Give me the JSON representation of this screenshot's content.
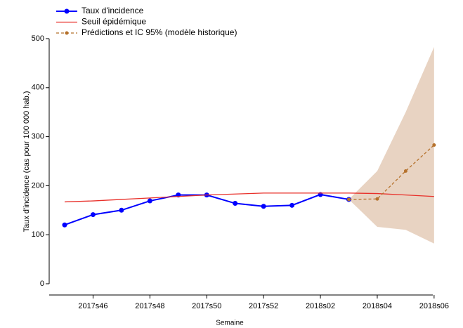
{
  "chart_data": {
    "type": "line",
    "categories": [
      null,
      "2017s46",
      null,
      "2017s48",
      null,
      "2017s50",
      null,
      "2017s52",
      null,
      "2018s02",
      null,
      "2018s04",
      null,
      "2018s06"
    ],
    "series": [
      {
        "name": "Taux d'incidence",
        "color": "#0000ff",
        "style": "solid",
        "markers": true,
        "values": [
          120,
          141,
          150,
          169,
          181,
          181,
          164,
          158,
          160,
          182,
          172,
          null,
          null,
          null
        ]
      },
      {
        "name": "Seuil épidémique",
        "color": "#e8302a",
        "style": "solid",
        "markers": false,
        "values": [
          167,
          169,
          172,
          175,
          178,
          181,
          183,
          185,
          185,
          185,
          185,
          184,
          181,
          178
        ]
      },
      {
        "name": "Prédictions et IC 95% (modèle historique)",
        "color": "#b5712b",
        "style": "dashed",
        "markers": true,
        "band_color": "#e8d3c2",
        "values": [
          null,
          null,
          null,
          null,
          null,
          null,
          null,
          null,
          null,
          null,
          172,
          173,
          230,
          283
        ],
        "lower": [
          null,
          null,
          null,
          null,
          null,
          null,
          null,
          null,
          null,
          null,
          172,
          116,
          110,
          82
        ],
        "upper": [
          null,
          null,
          null,
          null,
          null,
          null,
          null,
          null,
          null,
          null,
          172,
          230,
          350,
          483
        ]
      }
    ],
    "xlabel": "Semaine",
    "ylabel": "Taux d'incidence (cas pour 100 000 hab.)",
    "ylim": [
      0,
      500
    ],
    "yticks": [
      0,
      100,
      200,
      300,
      400,
      500
    ],
    "legend": "top-left"
  }
}
